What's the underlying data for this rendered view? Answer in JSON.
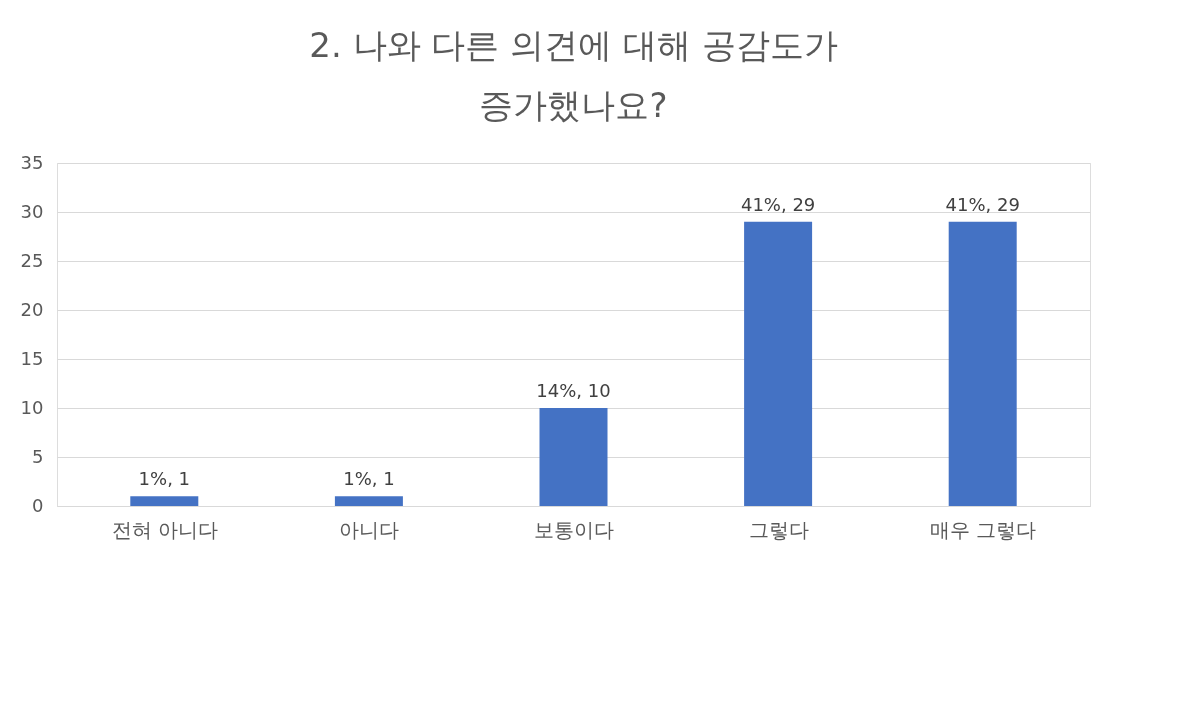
{
  "chart_data": {
    "type": "bar",
    "title": "2. 나와 다른 의견에 대해 공감도가 증가했나요?",
    "categories": [
      "전혀 아니다",
      "아니다",
      "보통이다",
      "그렇다",
      "매우 그렇다"
    ],
    "values": [
      1,
      1,
      10,
      29,
      29
    ],
    "value_labels": [
      "1%, 1",
      "1%, 1",
      "14%, 10",
      "41%, 29",
      "41%, 29"
    ],
    "color": "#4472c4",
    "ylim": [
      0,
      35
    ],
    "yticks": [
      0,
      5,
      10,
      15,
      20,
      25,
      30,
      35
    ],
    "grid": "y"
  }
}
